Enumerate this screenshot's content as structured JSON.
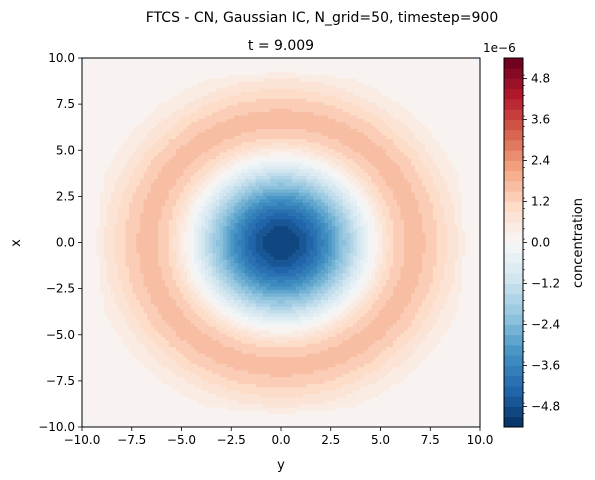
{
  "chart_data": {
    "type": "heatmap",
    "suptitle": "FTCS - CN, Gaussian IC, N_grid=50, timestep=900",
    "title": "t = 9.009",
    "xlabel": "y",
    "ylabel": "x",
    "xlim": [
      -10.0,
      10.0
    ],
    "ylim": [
      -10.0,
      10.0
    ],
    "xticks": [
      "−10.0",
      "−7.5",
      "−5.0",
      "−2.5",
      "0.0",
      "2.5",
      "5.0",
      "7.5",
      "10.0"
    ],
    "yticks": [
      "10.0",
      "7.5",
      "5.0",
      "2.5",
      "0.0",
      "−2.5",
      "−5.0",
      "−7.5",
      "−10.0"
    ],
    "colorbar": {
      "label": "concentration",
      "offset_text": "1e−6",
      "colormap": "RdBu_r",
      "range": [
        -5.4e-06,
        5.4e-06
      ],
      "tick_labels": [
        "4.8",
        "3.6",
        "2.4",
        "1.2",
        "0.0",
        "−1.2",
        "−2.4",
        "−3.6",
        "−4.8"
      ],
      "tick_values": [
        4.8,
        3.6,
        2.4,
        1.2,
        0.0,
        -1.2,
        -2.4,
        -3.6,
        -4.8
      ]
    },
    "field": {
      "center": [
        0,
        0
      ],
      "min_value": -5.1e-06,
      "zero_crossing_radius": 4.3,
      "max_value": 1.8e-06,
      "max_ring_radius_y": 6.3,
      "max_ring_radius_x": 6.6
    },
    "grid": false,
    "colors": {
      "negative_extreme": "#053061",
      "zero": "#f7f7f7",
      "positive_extreme": "#67001f"
    }
  }
}
